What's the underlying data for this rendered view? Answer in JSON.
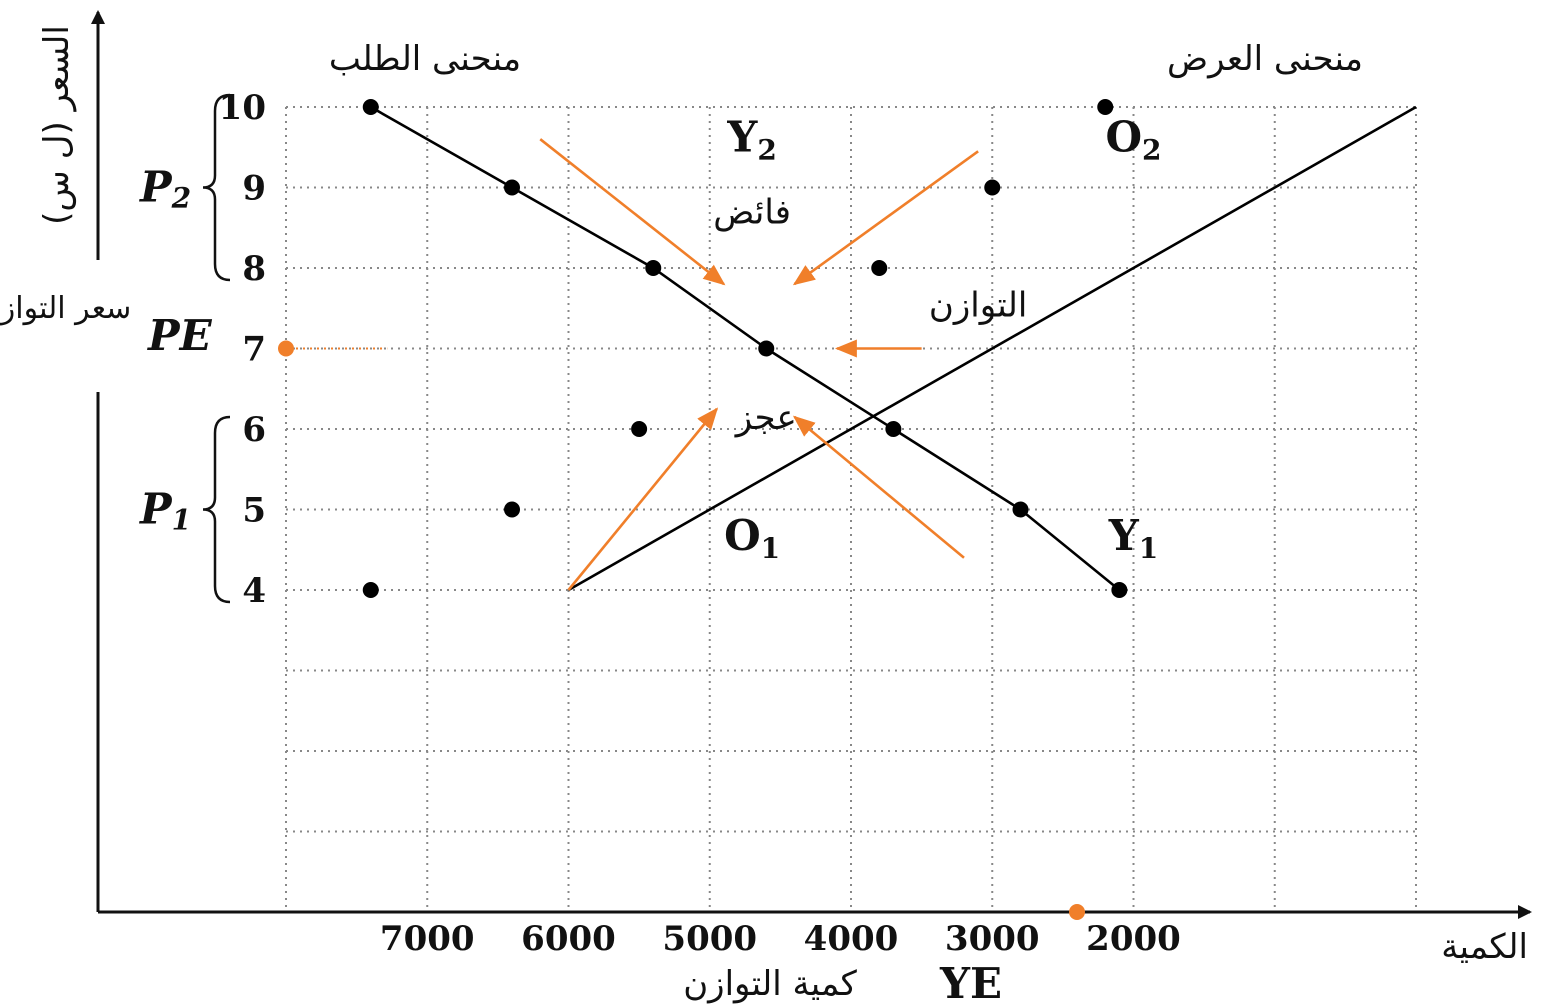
{
  "chart_data": {
    "type": "line",
    "x": {
      "label": "الكمية",
      "ticks": [
        7000,
        6000,
        5000,
        4000,
        3000,
        2000
      ],
      "direction": "reversed",
      "range": [
        8000,
        0
      ]
    },
    "y": {
      "label": "السعر (ل س)",
      "ticks": [
        4,
        5,
        6,
        7,
        8,
        9,
        10
      ],
      "range": [
        0,
        10
      ]
    },
    "series": [
      {
        "name": "منحنى الطلب",
        "role": "demand",
        "color": "#000000",
        "points": [
          [
            7400,
            10
          ],
          [
            6400,
            9
          ],
          [
            5400,
            8
          ],
          [
            4600,
            7
          ],
          [
            3700,
            6
          ],
          [
            2800,
            5
          ],
          [
            2100,
            4
          ]
        ]
      },
      {
        "name": "منحنى العرض",
        "role": "supply",
        "color": "#000000",
        "points": [
          [
            6000,
            4
          ],
          [
            0,
            10
          ]
        ]
      }
    ],
    "scatter_points": [
      [
        7400,
        10
      ],
      [
        6400,
        9
      ],
      [
        5400,
        8
      ],
      [
        4600,
        7
      ],
      [
        3700,
        6
      ],
      [
        2800,
        5
      ],
      [
        2100,
        4
      ],
      [
        2200,
        10
      ],
      [
        3000,
        9
      ],
      [
        3800,
        8
      ],
      [
        5500,
        6
      ],
      [
        6400,
        5
      ],
      [
        7400,
        4
      ]
    ],
    "equilibrium": {
      "price_marker": 7,
      "quantity_marker": 2400,
      "marker_color": "#f07f2a",
      "price_label": "سعر التوازن",
      "price_symbol": "PE",
      "quantity_label": "كمية التوازن",
      "quantity_symbol": "YE"
    },
    "brackets": [
      {
        "symbol": "P",
        "subscript": "2",
        "from": 8,
        "to": 10
      },
      {
        "symbol": "P",
        "subscript": "1",
        "from": 4,
        "to": 6
      }
    ],
    "annotations": [
      {
        "text": "فائض",
        "x": 4700,
        "y": 8.55
      },
      {
        "text": "التوازن",
        "x": 3100,
        "y": 7.4
      },
      {
        "text": "عجز",
        "x": 4600,
        "y": 6.0
      }
    ],
    "curve_labels": [
      {
        "letter": "Y",
        "subscript": "2",
        "x": 4700,
        "y": 9.45
      },
      {
        "letter": "O",
        "subscript": "2",
        "x": 2000,
        "y": 9.45
      },
      {
        "letter": "O",
        "subscript": "1",
        "x": 4700,
        "y": 4.5
      },
      {
        "letter": "Y",
        "subscript": "1",
        "x": 2000,
        "y": 4.5
      }
    ],
    "arrow_color": "#f07f2a",
    "arrows": [
      {
        "from": [
          6200,
          9.6
        ],
        "to": [
          4900,
          7.8
        ]
      },
      {
        "from": [
          3100,
          9.45
        ],
        "to": [
          4400,
          7.8
        ]
      },
      {
        "from": [
          3500,
          7.0
        ],
        "to": [
          4100,
          7.0
        ]
      },
      {
        "from": [
          6000,
          4.0
        ],
        "to": [
          4950,
          6.25
        ]
      },
      {
        "from": [
          3200,
          4.4
        ],
        "to": [
          4400,
          6.15
        ]
      }
    ],
    "grid": true,
    "grid_style": "dotted"
  }
}
